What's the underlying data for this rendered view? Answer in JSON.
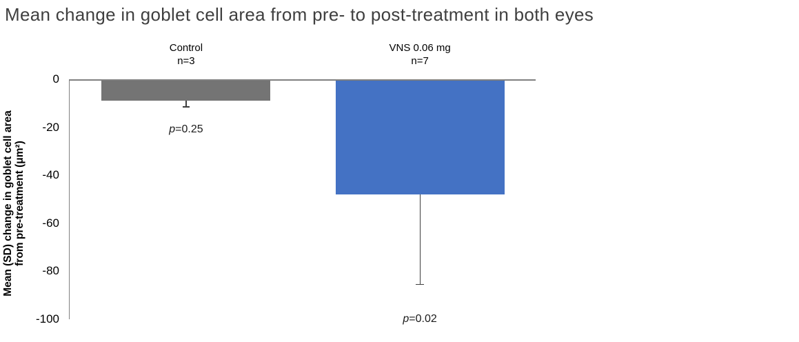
{
  "title": "Mean change in goblet cell area from pre- to post-treatment in both eyes",
  "chart_data": {
    "type": "bar",
    "title": "Mean change in goblet cell area from pre- to post-treatment in both eyes",
    "ylabel": "Mean (SD) change in goblet cell area from pre-treatment (μm²)",
    "ylabel_lines": [
      "Mean (SD) change in goblet cell area",
      "from pre-treatment (μm²)"
    ],
    "categories": [
      "Control",
      "VNS 0.06 mg"
    ],
    "n_labels": [
      "n=3",
      "n=7"
    ],
    "series": [
      {
        "name": "Mean change in goblet cell area",
        "values": [
          -9,
          -48
        ]
      }
    ],
    "error_bar_ends": [
      -11.5,
      -85.5
    ],
    "sd_estimates": [
      2.5,
      37.5
    ],
    "p_values": [
      "p=0.25",
      "p=0.02"
    ],
    "yticks": [
      0,
      -20,
      -40,
      -60,
      -80,
      -100
    ],
    "ylim": [
      0,
      -100
    ],
    "grid": false,
    "legend": false,
    "bar_colors": [
      "#747474",
      "#4472C4"
    ],
    "axis_color": "#7f7f7f",
    "error_bar_color": "#3d3d3d"
  }
}
